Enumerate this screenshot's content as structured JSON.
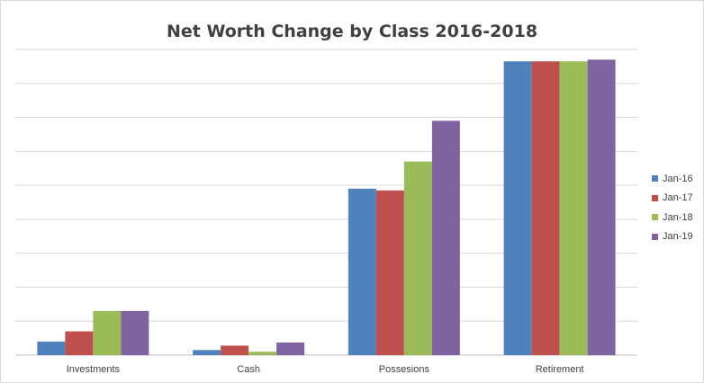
{
  "chart_data": {
    "type": "bar",
    "title": "Net Worth Change by Class 2016-2018",
    "xlabel": "",
    "ylabel": "",
    "categories": [
      "Investments",
      "Cash",
      "Possesions",
      "Retirement"
    ],
    "ylim": [
      0,
      9
    ],
    "grid": true,
    "legend_position": "right",
    "series": [
      {
        "name": "Jan-16",
        "color": "#4f81bd",
        "values": [
          0.4,
          0.15,
          4.9,
          8.65
        ]
      },
      {
        "name": "Jan-17",
        "color": "#c0504d",
        "values": [
          0.7,
          0.28,
          4.85,
          8.65
        ]
      },
      {
        "name": "Jan-18",
        "color": "#9bbb59",
        "values": [
          1.3,
          0.1,
          5.7,
          8.65
        ]
      },
      {
        "name": "Jan-19",
        "color": "#8064a2",
        "values": [
          1.3,
          0.37,
          6.9,
          8.7
        ]
      }
    ]
  }
}
